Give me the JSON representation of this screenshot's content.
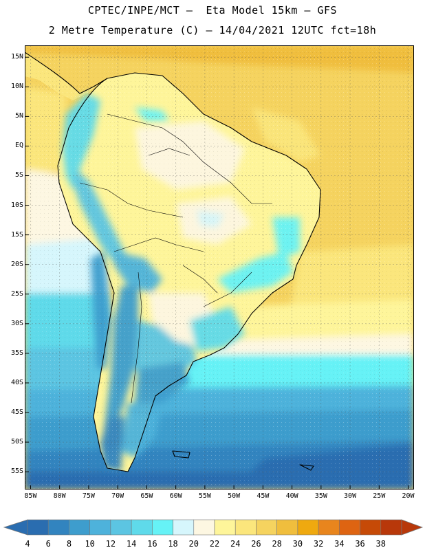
{
  "header": {
    "line1": "CPTEC/INPE/MCT –  Eta Model 15km – GFS",
    "line2": "2 Metre Temperature (C) – 14/04/2021 12UTC fct=18h"
  },
  "map": {
    "lon_range": [
      -86,
      -19
    ],
    "lat_range": [
      -58,
      17
    ],
    "lon_ticks": [
      "85W",
      "80W",
      "75W",
      "70W",
      "65W",
      "60W",
      "55W",
      "50W",
      "45W",
      "40W",
      "35W",
      "30W",
      "25W",
      "20W"
    ],
    "lat_ticks": [
      "15N",
      "10N",
      "5N",
      "EQ",
      "5S",
      "10S",
      "15S",
      "20S",
      "25S",
      "30S",
      "35S",
      "40S",
      "45S",
      "50S",
      "55S"
    ]
  },
  "colorbar": {
    "levels": [
      "4",
      "6",
      "8",
      "10",
      "12",
      "14",
      "16",
      "18",
      "20",
      "22",
      "24",
      "26",
      "28",
      "30",
      "32",
      "34",
      "36",
      "38"
    ],
    "colors": [
      "#2A6DB0",
      "#3284BF",
      "#3E9DCD",
      "#4EB2DB",
      "#5CC5E2",
      "#5FDAEA",
      "#66F2F6",
      "#D6F6FC",
      "#FDF7E2",
      "#FEF59A",
      "#FBE67C",
      "#F5D35F",
      "#F0BE3D",
      "#EFA90F",
      "#E8851D",
      "#DE6412",
      "#C64A07",
      "#B8380A"
    ]
  }
}
